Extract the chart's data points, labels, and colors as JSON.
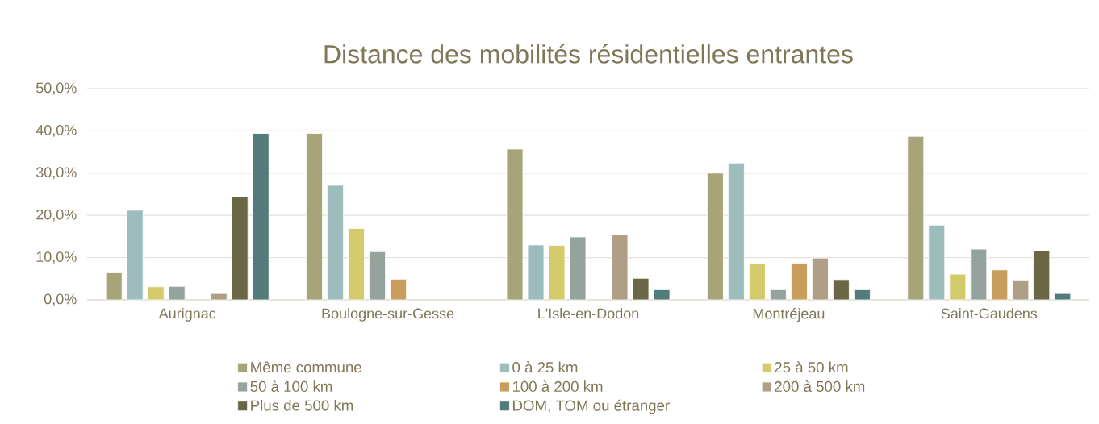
{
  "chart_data": {
    "type": "bar",
    "title": "Distance des mobilités résidentielles entrantes",
    "categories": [
      "Aurignac",
      "Boulogne-sur-Gesse",
      "L'Isle-en-Dodon",
      "Montréjeau",
      "Saint-Gaudens"
    ],
    "series": [
      {
        "name": "Même commune",
        "color": "#a8a47a",
        "values": [
          6.4,
          39.4,
          35.7,
          30.0,
          38.7
        ]
      },
      {
        "name": "0 à 25 km",
        "color": "#9dbdbc",
        "values": [
          21.2,
          27.1,
          13.0,
          32.4,
          17.7
        ]
      },
      {
        "name": "25 à 50 km",
        "color": "#d3cb6b",
        "values": [
          3.1,
          16.9,
          12.9,
          8.7,
          6.1
        ]
      },
      {
        "name": "50 à 100 km",
        "color": "#94a39b",
        "values": [
          3.2,
          11.4,
          14.9,
          2.4,
          12.0
        ]
      },
      {
        "name": "100 à 200 km",
        "color": "#c99e5c",
        "values": [
          null,
          4.9,
          null,
          8.7,
          7.1
        ]
      },
      {
        "name": "200 à 500 km",
        "color": "#b09f87",
        "values": [
          1.5,
          null,
          15.4,
          9.9,
          4.7
        ]
      },
      {
        "name": "Plus de 500 km",
        "color": "#6b6646",
        "values": [
          24.4,
          null,
          5.1,
          4.8,
          11.6
        ]
      },
      {
        "name": "DOM, TOM ou étranger",
        "color": "#527c7b",
        "values": [
          39.4,
          null,
          2.4,
          2.4,
          1.5
        ]
      }
    ],
    "ylim": [
      0,
      50
    ],
    "yticks": [
      {
        "value": 0,
        "label": "0,0%"
      },
      {
        "value": 10,
        "label": "10,0%"
      },
      {
        "value": 20,
        "label": "20,0%"
      },
      {
        "value": 30,
        "label": "30,0%"
      },
      {
        "value": 40,
        "label": "40,0%"
      },
      {
        "value": 50,
        "label": "50,0%"
      }
    ],
    "grid": "y",
    "legend": "bottom"
  }
}
